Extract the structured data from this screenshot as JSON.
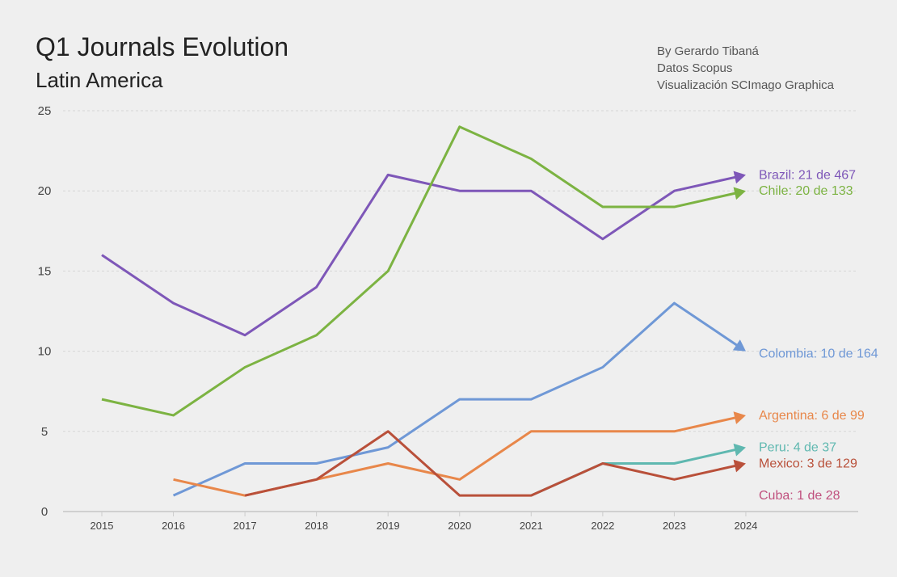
{
  "header": {
    "title": "Q1 Journals Evolution",
    "subtitle": "Latin America"
  },
  "credits": [
    "By Gerardo Tibaná",
    "Datos Scopus",
    "Visualización SCImago Graphica"
  ],
  "chart_data": {
    "type": "line",
    "title": "Q1 Journals Evolution",
    "subtitle": "Latin America",
    "x": [
      2015,
      2016,
      2017,
      2018,
      2019,
      2020,
      2021,
      2022,
      2023,
      2024
    ],
    "ylim": [
      0,
      25
    ],
    "yticks": [
      0,
      5,
      10,
      15,
      20,
      25
    ],
    "grid": true,
    "series": [
      {
        "name": "Brazil",
        "label": "Brazil: 21 de 467",
        "color": "#7e57b8",
        "values": [
          16,
          13,
          11,
          14,
          21,
          20,
          20,
          17,
          20,
          21
        ]
      },
      {
        "name": "Chile",
        "label": "Chile: 20 de 133",
        "color": "#7cb342",
        "values": [
          7,
          6,
          9,
          11,
          15,
          24,
          22,
          19,
          19,
          20
        ]
      },
      {
        "name": "Colombia",
        "label": "Colombia: 10 de 164",
        "color": "#6f98d6",
        "values": [
          null,
          1,
          3,
          3,
          4,
          7,
          7,
          9,
          13,
          10
        ]
      },
      {
        "name": "Argentina",
        "label": "Argentina: 6 de 99",
        "color": "#e8874a",
        "values": [
          null,
          2,
          1,
          2,
          3,
          2,
          5,
          5,
          5,
          6
        ]
      },
      {
        "name": "Peru",
        "label": "Peru: 4 de 37",
        "color": "#5fb8b0",
        "values": [
          null,
          null,
          null,
          null,
          null,
          null,
          1,
          3,
          3,
          4
        ]
      },
      {
        "name": "Mexico",
        "label": "Mexico: 3 de 129",
        "color": "#b9503a",
        "values": [
          null,
          null,
          1,
          2,
          5,
          1,
          1,
          3,
          2,
          3
        ]
      },
      {
        "name": "Cuba",
        "label": "Cuba: 1 de 28",
        "color": "#c0507e",
        "values": [
          null,
          null,
          null,
          null,
          null,
          null,
          null,
          null,
          null,
          null
        ]
      }
    ]
  }
}
